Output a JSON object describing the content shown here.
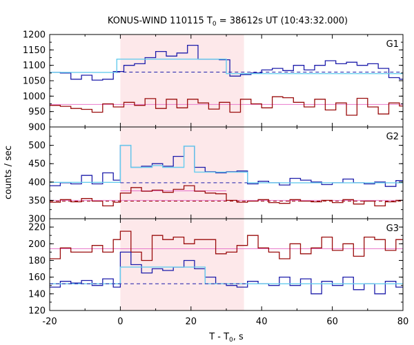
{
  "chart_data": {
    "type": "line",
    "title_main": "KONUS-WIND 110115 T",
    "title_sub": "0",
    "title_rest": " = 38612s UT (10:43:32.000)",
    "xlabel_main": "T - T",
    "xlabel_sub": "0",
    "xlabel_rest": ", s",
    "ylabel": "counts / sec",
    "xlim": [
      -20,
      80
    ],
    "x_ticks": [
      -20,
      0,
      20,
      40,
      60,
      80
    ],
    "highlight_interval": [
      0,
      35
    ],
    "colors": {
      "highlight": "#fde8ea",
      "blue": "#1c1caa",
      "red": "#9a0c0c",
      "light_blue": "#66ccee",
      "pink": "#e87acc"
    },
    "panels": [
      {
        "label": "G1",
        "ylim": [
          900,
          1200
        ],
        "y_ticks": [
          900,
          950,
          1000,
          1050,
          1100,
          1150,
          1200
        ],
        "blue_steps": {
          "edges": [
            -20,
            -17,
            -14,
            -11,
            -8,
            -5,
            -2,
            1,
            4,
            7,
            10,
            13,
            16,
            19,
            22,
            25,
            28,
            31,
            34,
            37,
            40,
            43,
            46,
            49,
            52,
            55,
            58,
            61,
            64,
            67,
            70,
            73,
            76,
            79,
            80
          ],
          "values": [
            1077,
            1075,
            1055,
            1068,
            1052,
            1055,
            1080,
            1100,
            1105,
            1125,
            1145,
            1130,
            1140,
            1165,
            1120,
            1120,
            1118,
            1065,
            1070,
            1075,
            1085,
            1090,
            1083,
            1100,
            1085,
            1100,
            1115,
            1105,
            1110,
            1100,
            1105,
            1090,
            1060,
            1055
          ]
        },
        "light_blue_levels": [
          {
            "x": [
              -20,
              -1
            ],
            "y": 1077
          },
          {
            "x": [
              -1,
              30
            ],
            "y": 1120
          },
          {
            "x": [
              30,
              80
            ],
            "y": 1073
          }
        ],
        "blue_dashed": {
          "x": [
            -1,
            80
          ],
          "y": 1078
        },
        "red_steps": {
          "edges": [
            -20,
            -17,
            -14,
            -11,
            -8,
            -5,
            -2,
            1,
            4,
            7,
            10,
            13,
            16,
            19,
            22,
            25,
            28,
            31,
            34,
            37,
            40,
            43,
            46,
            49,
            52,
            55,
            58,
            61,
            64,
            67,
            70,
            73,
            76,
            79,
            80
          ],
          "values": [
            970,
            967,
            960,
            957,
            948,
            975,
            965,
            980,
            970,
            992,
            960,
            990,
            962,
            990,
            978,
            958,
            980,
            948,
            990,
            975,
            962,
            998,
            995,
            980,
            965,
            990,
            955,
            978,
            938,
            993,
            965,
            942,
            978,
            968
          ]
        },
        "pink_level": {
          "x": [
            -20,
            80
          ],
          "y": 973
        }
      },
      {
        "label": "G2",
        "ylim": [
          300,
          550
        ],
        "y_ticks": [
          300,
          350,
          400,
          450,
          500
        ],
        "blue_steps": {
          "edges": [
            -20,
            -17,
            -14,
            -11,
            -8,
            -5,
            -2,
            0,
            3,
            6,
            9,
            12,
            15,
            18,
            21,
            24,
            27,
            30,
            33,
            36,
            39,
            42,
            45,
            48,
            51,
            54,
            57,
            60,
            63,
            66,
            69,
            72,
            75,
            78,
            80
          ],
          "values": [
            390,
            398,
            395,
            418,
            395,
            425,
            405,
            500,
            440,
            443,
            450,
            443,
            470,
            498,
            440,
            428,
            425,
            428,
            430,
            395,
            402,
            398,
            392,
            410,
            405,
            400,
            393,
            398,
            408,
            398,
            395,
            400,
            388,
            404
          ]
        },
        "light_blue_levels": [
          {
            "x": [
              -20,
              0
            ],
            "y": 399
          },
          {
            "x": [
              0,
              3
            ],
            "y": 500
          },
          {
            "x": [
              3,
              9
            ],
            "y": 440
          },
          {
            "x": [
              9,
              12
            ],
            "y": 445
          },
          {
            "x": [
              12,
              18
            ],
            "y": 440
          },
          {
            "x": [
              18,
              21
            ],
            "y": 498
          },
          {
            "x": [
              21,
              36
            ],
            "y": 427
          },
          {
            "x": [
              36,
              80
            ],
            "y": 398
          }
        ],
        "blue_dashed": {
          "x": [
            0,
            36
          ],
          "y": 398
        },
        "red_steps": {
          "edges": [
            -20,
            -17,
            -14,
            -11,
            -8,
            -5,
            -2,
            0,
            3,
            6,
            9,
            12,
            15,
            18,
            21,
            24,
            27,
            30,
            33,
            36,
            39,
            42,
            45,
            48,
            51,
            54,
            57,
            60,
            63,
            66,
            69,
            72,
            75,
            78,
            80
          ],
          "values": [
            345,
            352,
            346,
            355,
            348,
            335,
            345,
            370,
            385,
            375,
            378,
            372,
            380,
            390,
            375,
            370,
            368,
            350,
            345,
            348,
            352,
            344,
            342,
            352,
            348,
            346,
            350,
            344,
            352,
            340,
            348,
            335,
            346,
            350
          ]
        },
        "light_red_level": {
          "x": [
            0,
            30
          ],
          "y": 376
        },
        "red_dashed": {
          "x": [
            -20,
            80
          ],
          "y": 348
        },
        "pink_level": {
          "x": [
            -20,
            80
          ],
          "y": 350
        }
      },
      {
        "label": "G3",
        "ylim": [
          120,
          230
        ],
        "y_ticks": [
          120,
          140,
          160,
          180,
          200,
          220
        ],
        "blue_steps": {
          "edges": [
            -20,
            -17,
            -14,
            -11,
            -8,
            -5,
            -2,
            0,
            3,
            6,
            9,
            12,
            15,
            18,
            21,
            24,
            27,
            30,
            33,
            36,
            39,
            42,
            45,
            48,
            51,
            54,
            57,
            60,
            63,
            66,
            69,
            72,
            75,
            78,
            80
          ],
          "values": [
            148,
            155,
            153,
            156,
            150,
            158,
            148,
            190,
            175,
            165,
            170,
            168,
            172,
            180,
            170,
            160,
            152,
            150,
            148,
            155,
            152,
            150,
            160,
            150,
            158,
            140,
            155,
            150,
            160,
            145,
            152,
            140,
            155,
            148
          ]
        },
        "light_blue_levels": [
          {
            "x": [
              -20,
              0
            ],
            "y": 152
          },
          {
            "x": [
              0,
              12
            ],
            "y": 172
          },
          {
            "x": [
              12,
              24
            ],
            "y": 172
          },
          {
            "x": [
              24,
              80
            ],
            "y": 152
          }
        ],
        "blue_dashed": {
          "x": [
            -20,
            36
          ],
          "y": 152
        },
        "red_steps": {
          "edges": [
            -20,
            -17,
            -14,
            -11,
            -8,
            -5,
            -2,
            0,
            3,
            6,
            9,
            12,
            15,
            18,
            21,
            24,
            27,
            30,
            33,
            36,
            39,
            42,
            45,
            48,
            51,
            54,
            57,
            60,
            63,
            66,
            69,
            72,
            75,
            78,
            80
          ],
          "values": [
            182,
            195,
            190,
            190,
            198,
            190,
            205,
            215,
            190,
            180,
            210,
            205,
            208,
            200,
            205,
            205,
            188,
            190,
            198,
            210,
            195,
            190,
            182,
            200,
            188,
            195,
            208,
            192,
            200,
            185,
            208,
            205,
            192,
            205
          ]
        },
        "pink_level": {
          "x": [
            -20,
            80
          ],
          "y": 194
        }
      }
    ]
  }
}
